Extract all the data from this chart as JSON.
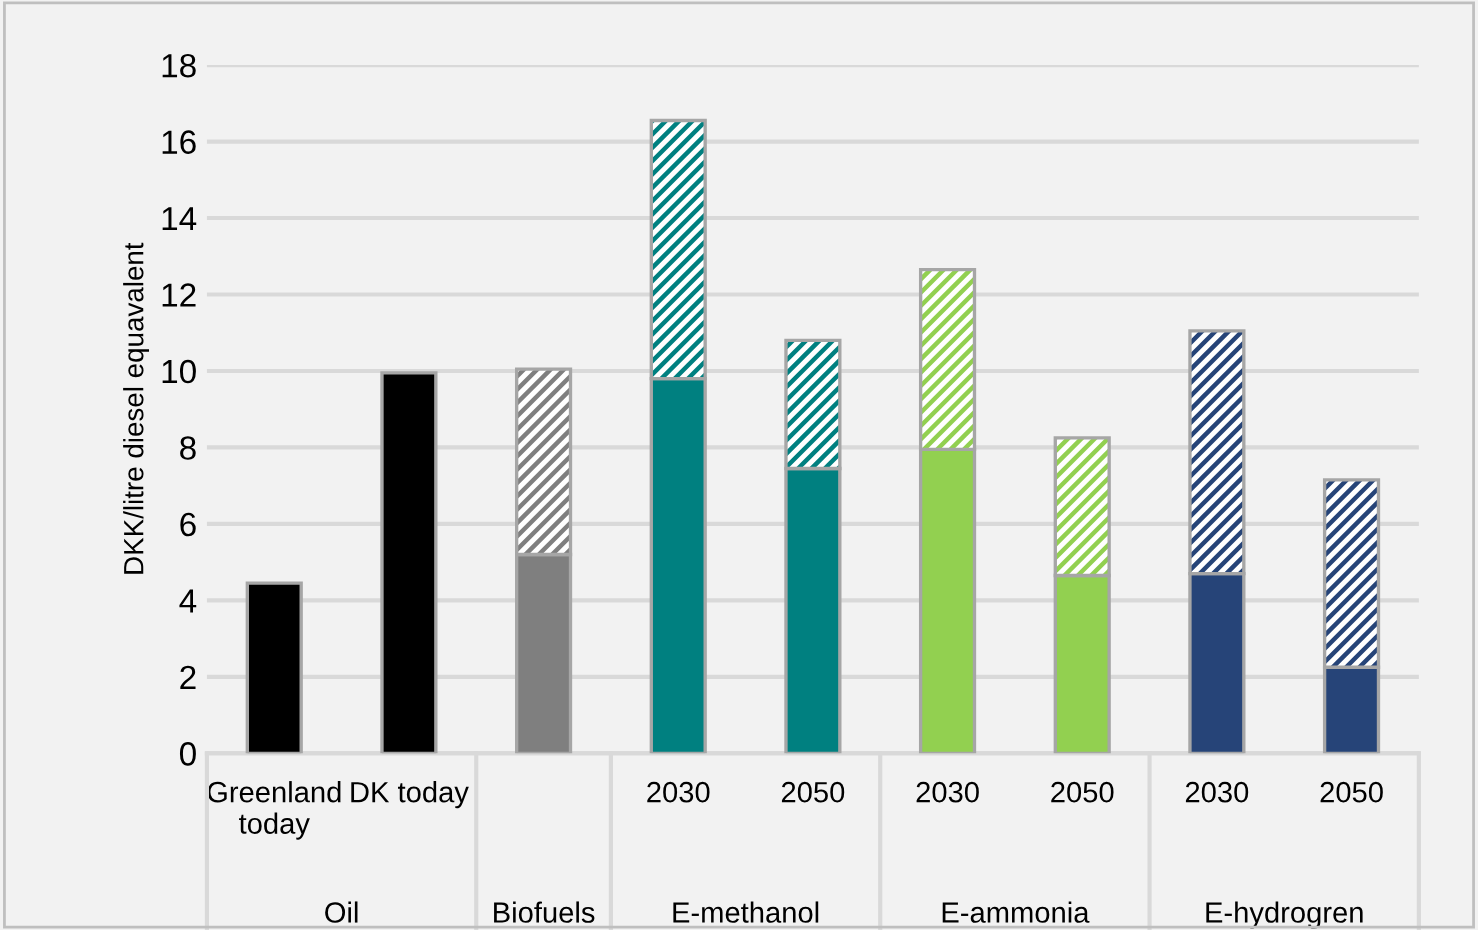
{
  "chart_data": {
    "type": "bar",
    "stacked": true,
    "ylabel": "DKK/litre diesel equavalent",
    "categories": [
      "Greenland\ntoday",
      "DK today",
      null,
      "2030",
      "2050",
      "2030",
      "2050",
      "2030",
      "2050"
    ],
    "series": [
      {
        "colors": [
          "#000000",
          "#000000",
          "#7f7f7f",
          "#008080",
          "#008080",
          "#92d050",
          "#92d050",
          "#264478",
          "#264478"
        ],
        "values": [
          4.45,
          9.95,
          5.2,
          9.8,
          7.45,
          7.95,
          4.65,
          4.7,
          2.25
        ]
      },
      {
        "colors": [
          "#000000",
          "#000000",
          "#7f7f7f",
          "#008080",
          "#008080",
          "#92d050",
          "#92d050",
          "#264478",
          "#264478"
        ],
        "values": [
          null,
          null,
          4.85,
          6.75,
          3.35,
          4.7,
          3.6,
          6.35,
          4.9
        ]
      }
    ],
    "annotations": [
      "Oil",
      "Biofuels",
      "E-methanol",
      "E-ammonia",
      "E-hydrogren"
    ],
    "ylim": [
      0,
      18
    ],
    "yticks": [
      0,
      2,
      4,
      6,
      8,
      10,
      12,
      14,
      16,
      18
    ],
    "grid": "y",
    "legend": false
  }
}
